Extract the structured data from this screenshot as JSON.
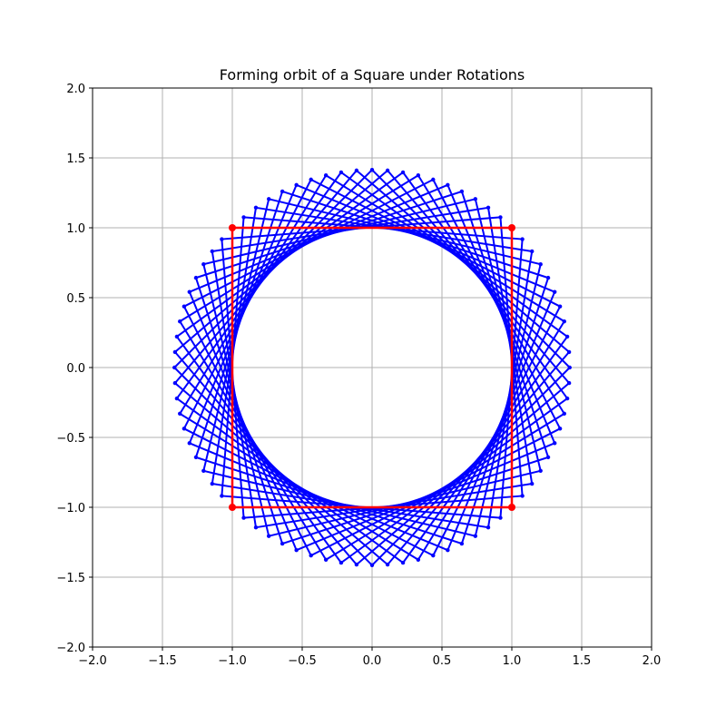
{
  "chart_data": {
    "type": "line",
    "title": "Forming orbit of a Square under Rotations",
    "xlabel": "",
    "ylabel": "",
    "xlim": [
      -2.0,
      2.0
    ],
    "ylim": [
      -2.0,
      2.0
    ],
    "x_ticks": [
      "−2.0",
      "−1.5",
      "−1.0",
      "−0.5",
      "0.0",
      "0.5",
      "1.0",
      "1.5",
      "2.0"
    ],
    "y_ticks": [
      "−2.0",
      "−1.5",
      "−1.0",
      "−0.5",
      "0.0",
      "0.5",
      "1.0",
      "1.5",
      "2.0"
    ],
    "grid": true,
    "series": [
      {
        "role": "original-square",
        "color": "#ff0000",
        "vertices": [
          [
            1,
            1
          ],
          [
            -1,
            1
          ],
          [
            -1,
            -1
          ],
          [
            1,
            -1
          ]
        ]
      },
      {
        "role": "rotated-copies",
        "color": "#0000ff",
        "base_vertices": [
          [
            1,
            1
          ],
          [
            -1,
            1
          ],
          [
            -1,
            -1
          ],
          [
            1,
            -1
          ]
        ],
        "rotation_count": 19,
        "rotation_step_degrees": 4.5
      }
    ]
  }
}
